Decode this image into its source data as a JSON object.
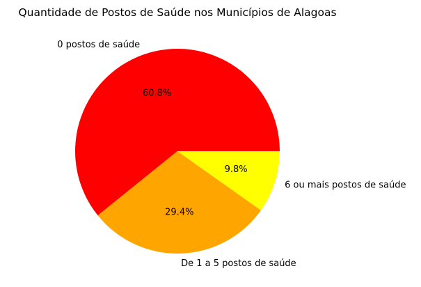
{
  "chart_data": {
    "type": "pie",
    "title": "Quantidade de Postos de Saúde nos Municípios de Alagoas",
    "slices": [
      {
        "label": "0 postos de saúde",
        "value": 60.8,
        "pct_label": "60.8%",
        "color": "#ff0000"
      },
      {
        "label": "De 1 a 5 postos de saúde",
        "value": 29.4,
        "pct_label": "29.4%",
        "color": "#ffa500"
      },
      {
        "label": "6 ou mais postos de saúde",
        "value": 9.8,
        "pct_label": "9.8%",
        "color": "#ffff00"
      }
    ],
    "start_angle_deg": 0,
    "direction": "counterclockwise",
    "legend": "none"
  }
}
